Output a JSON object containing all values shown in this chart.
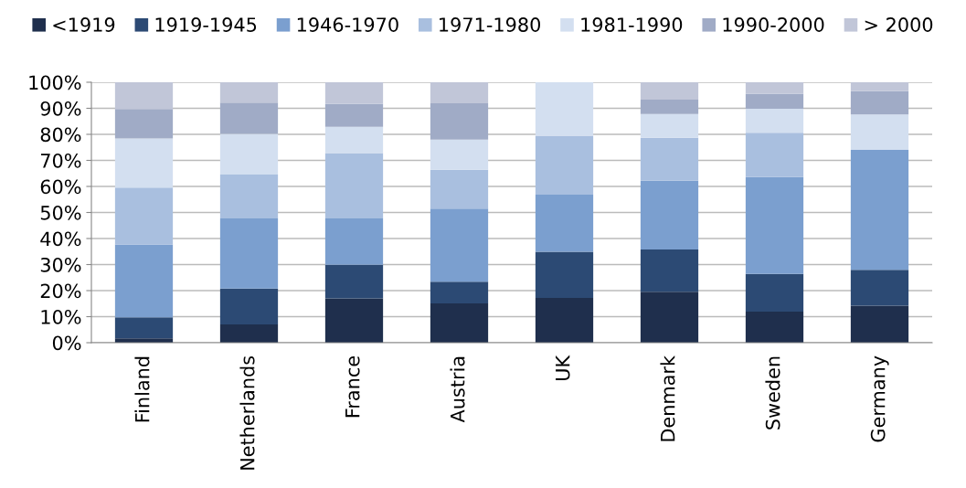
{
  "chart_data": {
    "type": "bar",
    "stacked": true,
    "categories": [
      "Finland",
      "Netherlands",
      "France",
      "Austria",
      "UK",
      "Denmark",
      "Sweden",
      "Germany"
    ],
    "series": [
      {
        "name": "<1919",
        "color": "#1f2f4d",
        "values": [
          1.7,
          7.0,
          17.0,
          15.1,
          17.2,
          19.6,
          11.9,
          14.2
        ]
      },
      {
        "name": "1919-1945",
        "color": "#2c4a74",
        "values": [
          8.0,
          13.8,
          12.9,
          8.3,
          17.7,
          16.2,
          14.5,
          13.8
        ]
      },
      {
        "name": "1946-1970",
        "color": "#7b9fcf",
        "values": [
          28.0,
          26.9,
          17.8,
          28.1,
          21.9,
          26.4,
          37.2,
          46.0
        ]
      },
      {
        "name": "1971-1980",
        "color": "#a9bfdf",
        "values": [
          21.9,
          16.9,
          25.1,
          14.9,
          22.7,
          16.5,
          17.0,
          0
        ]
      },
      {
        "name": "1981-1990",
        "color": "#d3dff0",
        "values": [
          18.8,
          15.6,
          10.1,
          11.6,
          20.5,
          9.1,
          9.2,
          13.6
        ]
      },
      {
        "name": "1990-2000",
        "color": "#a0abc6",
        "values": [
          11.3,
          12.0,
          8.8,
          13.9,
          0,
          5.5,
          5.7,
          9.0
        ]
      },
      {
        "name": "> 2000",
        "color": "#c1c6d8",
        "values": [
          10.3,
          7.8,
          8.3,
          8.1,
          0,
          6.7,
          4.5,
          3.4
        ]
      }
    ],
    "ylim": [
      0,
      100
    ],
    "yticks": [
      {
        "value": 0,
        "label": "0%"
      },
      {
        "value": 10,
        "label": "10%"
      },
      {
        "value": 20,
        "label": "20%"
      },
      {
        "value": 30,
        "label": "30%"
      },
      {
        "value": 40,
        "label": "40%"
      },
      {
        "value": 50,
        "label": "50%"
      },
      {
        "value": 60,
        "label": "60%"
      },
      {
        "value": 70,
        "label": "70%"
      },
      {
        "value": 80,
        "label": "80%"
      },
      {
        "value": 90,
        "label": "90%"
      },
      {
        "value": 100,
        "label": "100%"
      }
    ],
    "grid": "y",
    "legend": "top"
  }
}
